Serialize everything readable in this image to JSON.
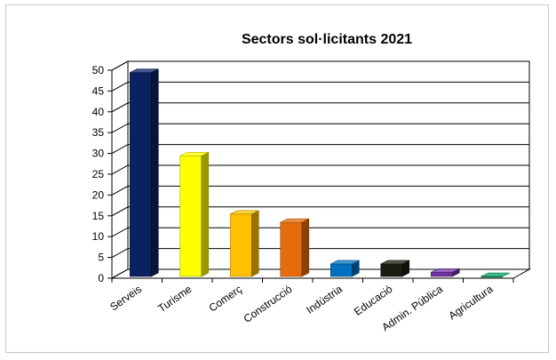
{
  "chart_data": {
    "type": "bar",
    "title": "Sectors sol·licitants 2021",
    "xlabel": "",
    "ylabel": "",
    "ylim": [
      0,
      50
    ],
    "yticks": [
      0,
      5,
      10,
      15,
      20,
      25,
      30,
      35,
      40,
      45,
      50
    ],
    "grid": true,
    "legend": "none",
    "categories": [
      "Serveis",
      "Turisme",
      "Comerç",
      "Construcció",
      "Indústria",
      "Educació",
      "Admin. Pública",
      "Agricultura"
    ],
    "values": [
      49,
      29,
      15,
      13,
      3,
      3,
      1,
      0
    ],
    "colors": [
      "#0b2160",
      "#ffff00",
      "#ffc000",
      "#e46c0a",
      "#0070c0",
      "#1c1c12",
      "#7030a0",
      "#00a060"
    ]
  }
}
